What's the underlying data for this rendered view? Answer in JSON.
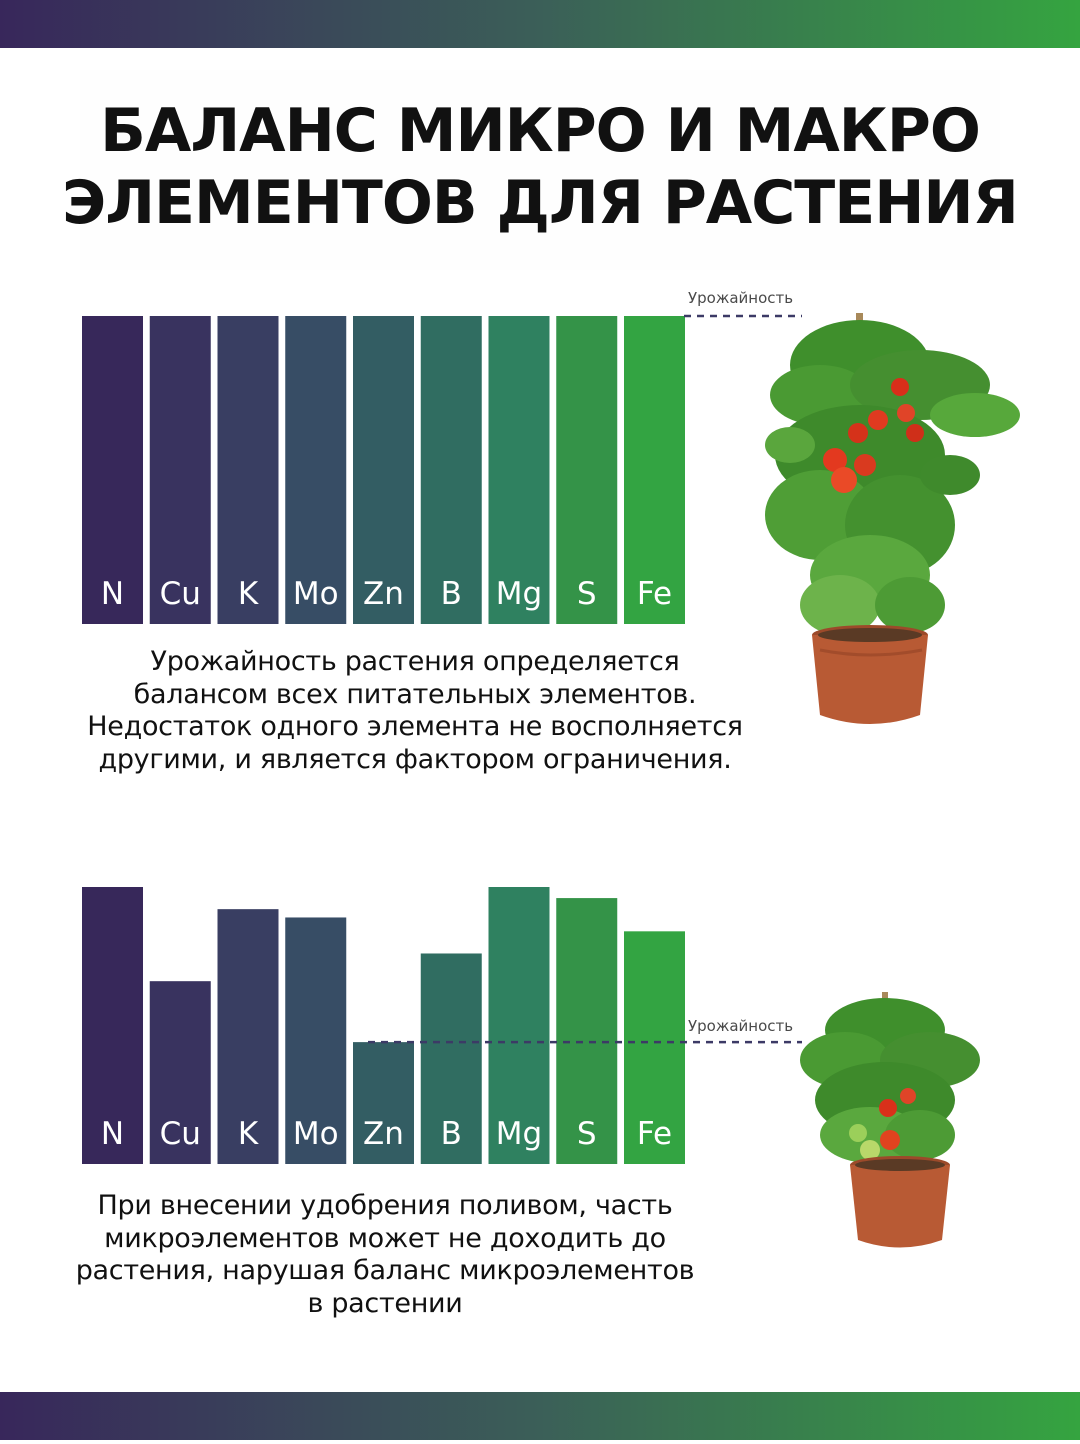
{
  "title": {
    "line1": "БАЛАНС МИКРО И МАКРО",
    "line2": "ЭЛЕМЕНТОВ ДЛЯ РАСТЕНИЯ"
  },
  "colors": {
    "bars": [
      "#37285a",
      "#39335f",
      "#393e62",
      "#374d65",
      "#335d63",
      "#306d61",
      "#2f8160",
      "#349348",
      "#33a442"
    ],
    "yield_line": "#3c3a66",
    "stripe_start": "#38275b",
    "stripe_end": "#35a440"
  },
  "chart_data": [
    {
      "type": "bar",
      "categories": [
        "N",
        "Cu",
        "K",
        "Mo",
        "Zn",
        "B",
        "Mg",
        "S",
        "Fe"
      ],
      "values": [
        100,
        100,
        100,
        100,
        100,
        100,
        100,
        100,
        100
      ],
      "ylim": [
        0,
        100
      ],
      "yield_label": "Урожайность",
      "yield_level": 100,
      "grid": false
    },
    {
      "type": "bar",
      "categories": [
        "N",
        "Cu",
        "K",
        "Mo",
        "Zn",
        "B",
        "Mg",
        "S",
        "Fe"
      ],
      "values": [
        100,
        66,
        92,
        89,
        44,
        76,
        100,
        96,
        84
      ],
      "ylim": [
        0,
        100
      ],
      "yield_label": "Урожайность",
      "yield_level": 44,
      "grid": false
    }
  ],
  "descriptions": {
    "first": "Урожайность растения определяется балансом всех питательных элементов. Недостаток одного элемента не восполняется другими, и является фактором ограничения.",
    "second": "При внесении удобрения поливом, часть микроэлементов может не доходить до растения, нарушая баланс микроэлементов в растении"
  },
  "images": {
    "plant_large": "tomato-plant-healthy",
    "plant_small": "tomato-plant-limited"
  }
}
